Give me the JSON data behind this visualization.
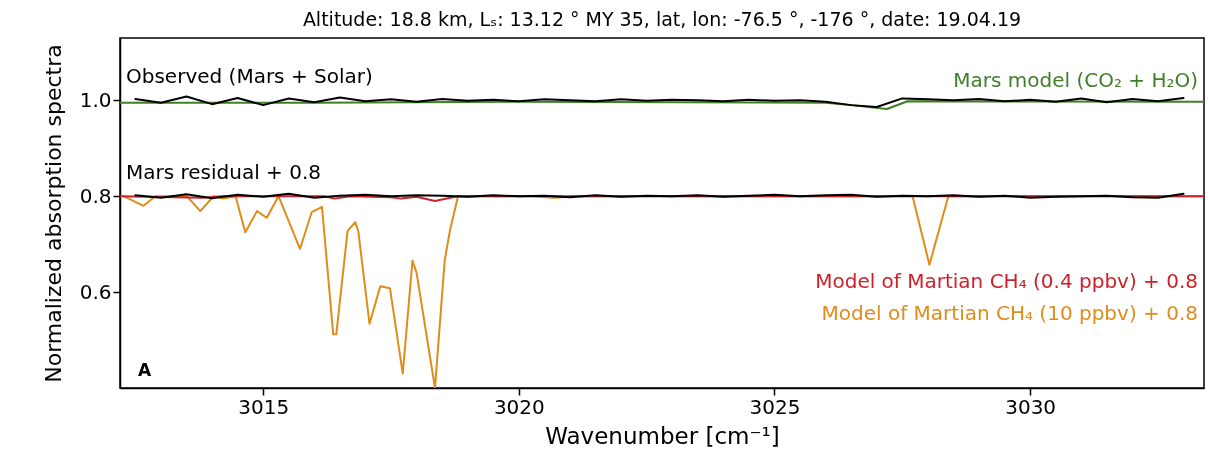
{
  "chart_data": {
    "type": "line",
    "title": "Altitude: 18.8 km, Lₛ: 13.12 ° MY 35, lat, lon: -76.5 °, -176 °, date: 19.04.19",
    "xlabel": "Wavenumber [cm⁻¹]",
    "ylabel": "Normalized absorption spectra",
    "xlim": [
      3012.2,
      3033.4
    ],
    "ylim": [
      0.4,
      1.13
    ],
    "xticks": [
      3015,
      3020,
      3025,
      3030
    ],
    "yticks": [
      0.6,
      0.8,
      {
        "value": 1,
        "label": "1.0"
      }
    ],
    "grid": false,
    "annotations": [
      "A"
    ],
    "x": [
      3012.5,
      3013,
      3013.5,
      3014,
      3014.5,
      3015,
      3015.5,
      3016,
      3016.5,
      3017,
      3017.5,
      3018,
      3018.5,
      3019,
      3019.5,
      3020,
      3020.5,
      3021,
      3021.5,
      3022,
      3022.5,
      3023,
      3023.5,
      3024,
      3024.5,
      3025,
      3025.5,
      3026,
      3026.5,
      3027,
      3027.5,
      3028,
      3028.5,
      3029,
      3029.5,
      3030,
      3030.5,
      3031,
      3031.5,
      3032,
      3032.5,
      3033
    ],
    "series": [
      {
        "name": "Observed (Mars + Solar)",
        "color": "#000000",
        "values": [
          1.003,
          0.995,
          1.008,
          0.992,
          1.005,
          0.99,
          1.004,
          0.996,
          1.006,
          0.998,
          1.002,
          0.997,
          1.003,
          0.999,
          1.001,
          0.998,
          1.002,
          1.0,
          0.998,
          1.002,
          0.999,
          1.001,
          1.0,
          0.998,
          1.001,
          0.999,
          1.0,
          0.997,
          0.99,
          0.986,
          1.004,
          1.002,
          1.0,
          1.003,
          0.998,
          1.001,
          0.997,
          1.004,
          0.996,
          1.003,
          0.998,
          1.005
        ]
      },
      {
        "name": "Mars model (CO₂ + H₂O)",
        "color": "#3f7f27",
        "x": [
          3012.2,
          3016,
          3020,
          3026,
          3026.5,
          3027.2,
          3027.6,
          3033.4
        ],
        "values": [
          0.995,
          0.995,
          0.997,
          0.995,
          0.99,
          0.982,
          0.998,
          0.997
        ]
      },
      {
        "name": "Mars residual + 0.8",
        "color": "#000000",
        "values": [
          0.802,
          0.797,
          0.804,
          0.796,
          0.803,
          0.799,
          0.805,
          0.797,
          0.801,
          0.803,
          0.8,
          0.802,
          0.801,
          0.799,
          0.802,
          0.8,
          0.801,
          0.798,
          0.802,
          0.799,
          0.801,
          0.8,
          0.802,
          0.799,
          0.801,
          0.803,
          0.8,
          0.802,
          0.803,
          0.799,
          0.801,
          0.8,
          0.802,
          0.799,
          0.801,
          0.797,
          0.799,
          0.8,
          0.801,
          0.798,
          0.797,
          0.805
        ]
      },
      {
        "name": "Model of Martian CH₄ (0.4 ppbv) + 0.8",
        "color": "#cc2229",
        "x": [
          3012.2,
          3013.8,
          3014.2,
          3016.2,
          3016.4,
          3016.7,
          3017.5,
          3017.7,
          3018,
          3018.36,
          3018.8,
          3033.4
        ],
        "values": [
          0.8,
          0.797,
          0.8,
          0.8,
          0.795,
          0.8,
          0.798,
          0.795,
          0.799,
          0.79,
          0.8,
          0.8
        ]
      },
      {
        "name": "Model of Martian CH₄ (10 ppbv) + 0.8",
        "color": "#e08c1a",
        "x": [
          3012.27,
          3012.66,
          3012.89,
          3013.51,
          3013.77,
          3014.03,
          3014.22,
          3014.46,
          3014.65,
          3014.88,
          3015.07,
          3015.3,
          3015.72,
          3015.95,
          3016.15,
          3016.37,
          3016.43,
          3016.65,
          3016.8,
          3016.86,
          3017.08,
          3017.29,
          3017.48,
          3017.73,
          3017.92,
          3018,
          3018.36,
          3018.55,
          3018.65,
          3018.81,
          3020.27,
          3020.7,
          3021.13,
          3027.7,
          3028.03,
          3028.4,
          3033.4
        ],
        "values": [
          0.8,
          0.78,
          0.8,
          0.8,
          0.769,
          0.8,
          0.795,
          0.8,
          0.725,
          0.769,
          0.755,
          0.8,
          0.69,
          0.767,
          0.778,
          0.512,
          0.512,
          0.727,
          0.746,
          0.727,
          0.534,
          0.612,
          0.608,
          0.43,
          0.666,
          0.64,
          0.4,
          0.666,
          0.727,
          0.8,
          0.8,
          0.797,
          0.8,
          0.8,
          0.657,
          0.8,
          0.8
        ]
      }
    ]
  }
}
